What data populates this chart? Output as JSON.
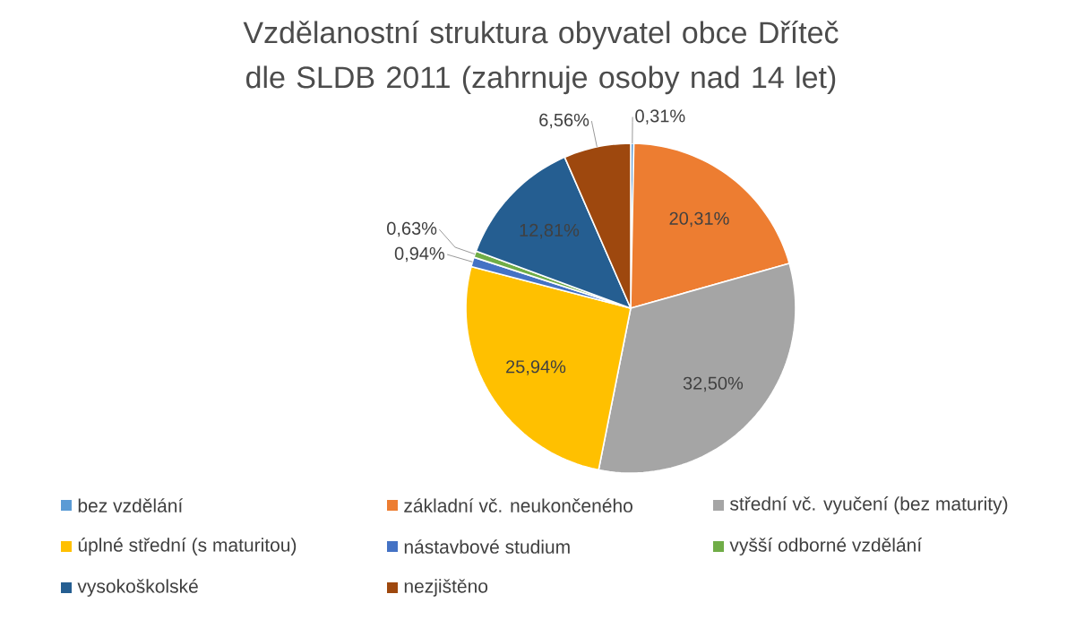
{
  "chart_data": {
    "type": "pie",
    "title": "Vzdělanostní struktura obyvatel obce Dříteč dle SLDB 2011 (zahrnuje osoby nad 14 let)",
    "categories": [
      "bez vzdělání",
      "základní vč. neukončeného",
      "střední vč. vyučení (bez maturity)",
      "úplné střední (s maturitou)",
      "nástavbové studium",
      "vyšší odborné vzdělání",
      "vysokoškolské",
      "nezjištěno"
    ],
    "values": [
      0.31,
      20.31,
      32.5,
      25.94,
      0.94,
      0.63,
      12.81,
      6.56
    ],
    "value_labels": [
      "0,31%",
      "20,31%",
      "32,50%",
      "25,94%",
      "0,94%",
      "0,63%",
      "12,81%",
      "6,56%"
    ],
    "colors": [
      "#5b9bd5",
      "#ed7d31",
      "#a5a5a5",
      "#ffc000",
      "#4472c4",
      "#70ad47",
      "#255e91",
      "#9e480e"
    ],
    "legend": "bottom"
  }
}
